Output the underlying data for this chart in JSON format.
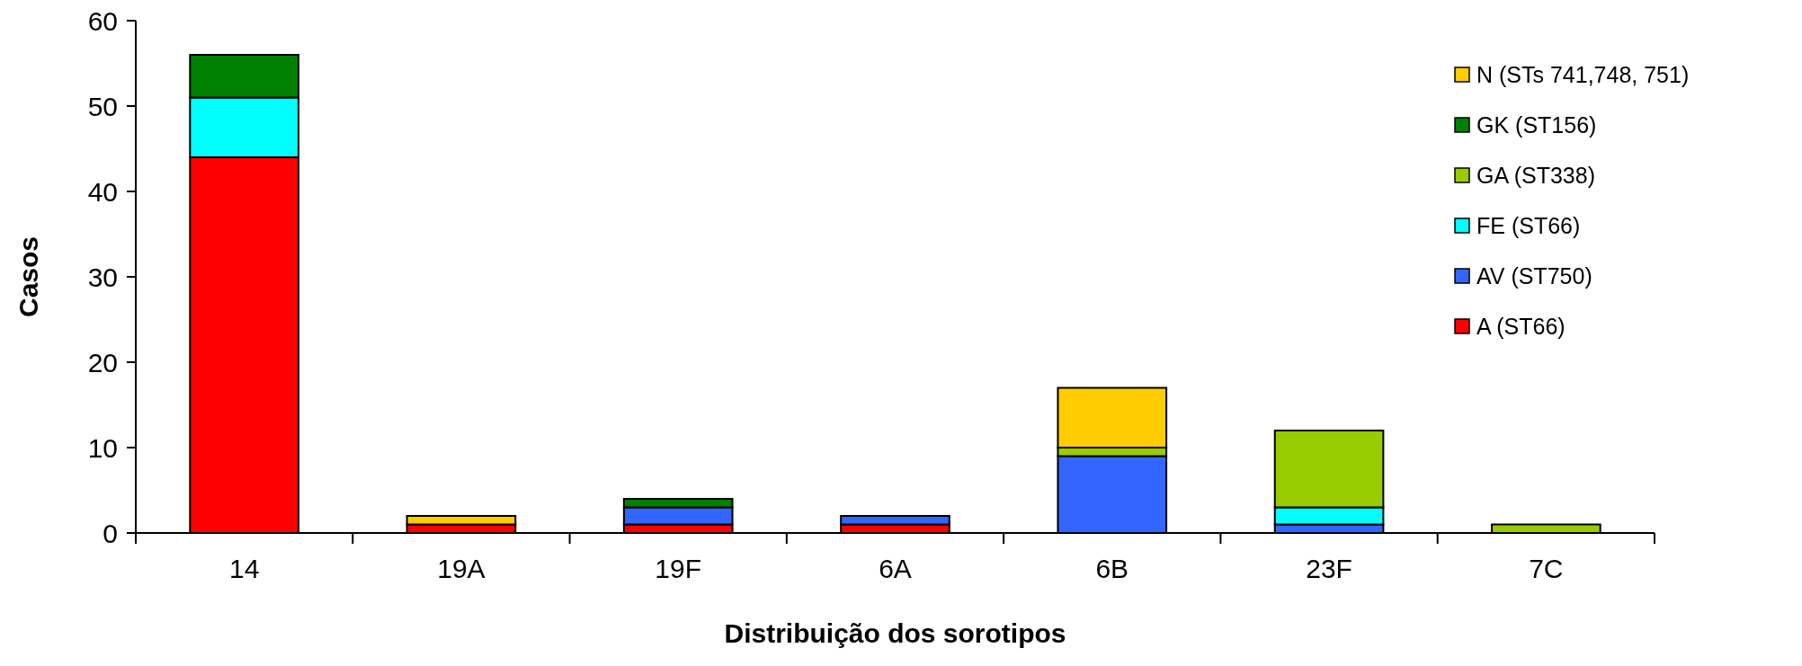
{
  "chart_data": {
    "type": "bar",
    "stacked": true,
    "xlabel": "Distribuição dos sorotipos",
    "ylabel": "Casos",
    "categories": [
      "14",
      "19A",
      "19F",
      "6A",
      "6B",
      "23F",
      "7C"
    ],
    "series": [
      {
        "name": "A (ST66)",
        "color": "#ff0000",
        "values": [
          44,
          1,
          1,
          1,
          0,
          0,
          0
        ]
      },
      {
        "name": "AV (ST750)",
        "color": "#3366ff",
        "values": [
          0,
          0,
          2,
          1,
          9,
          1,
          0
        ]
      },
      {
        "name": "FE (ST66)",
        "color": "#00ffff",
        "values": [
          7,
          0,
          0,
          0,
          0,
          2,
          0
        ]
      },
      {
        "name": "GA (ST338)",
        "color": "#99cc00",
        "values": [
          0,
          0,
          0,
          0,
          1,
          9,
          1
        ]
      },
      {
        "name": "GK (ST156)",
        "color": "#008000",
        "values": [
          5,
          0,
          1,
          0,
          0,
          0,
          0
        ]
      },
      {
        "name": "N (STs 741,748, 751)",
        "color": "#ffcc00",
        "values": [
          0,
          1,
          0,
          0,
          7,
          0,
          0
        ]
      }
    ],
    "ylim": [
      0,
      60
    ],
    "yticks": [
      0,
      10,
      20,
      30,
      40,
      50,
      60
    ],
    "grid": false,
    "legend": "right"
  }
}
